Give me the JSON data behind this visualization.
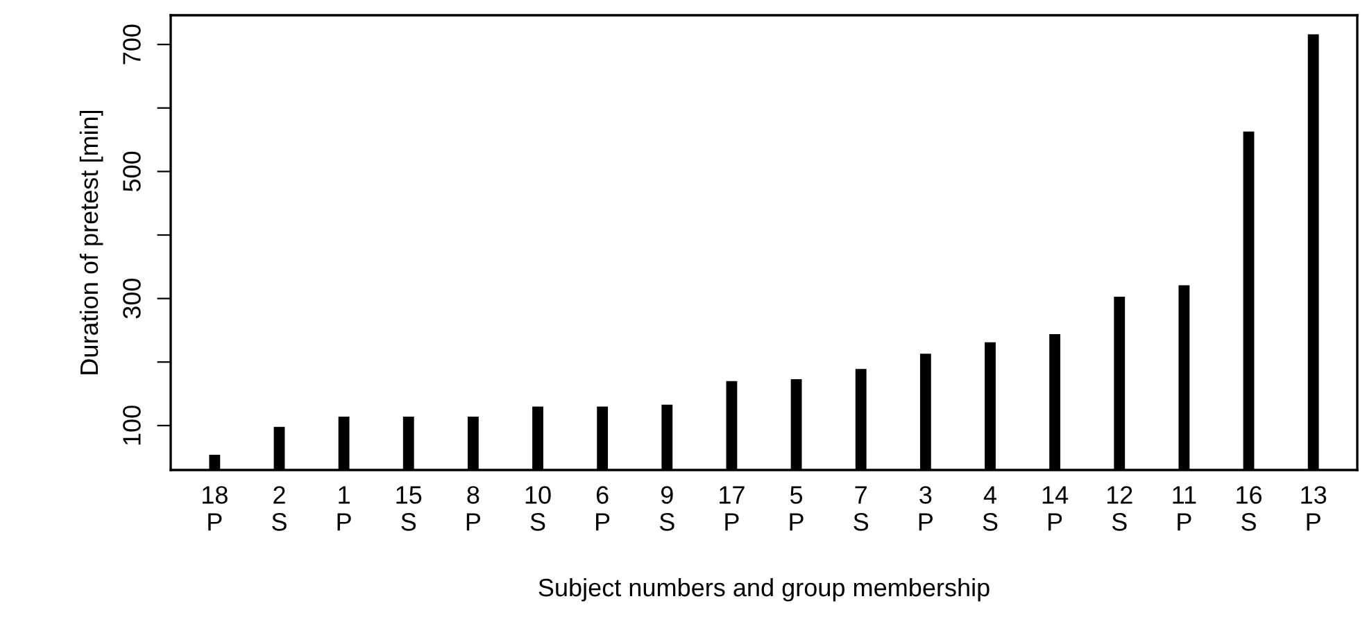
{
  "chart_data": {
    "type": "bar",
    "xlabel": "Subject numbers and group membership",
    "ylabel": "Duration of pretest [min]",
    "categories": [
      "18\nP",
      "2\nS",
      "1\nP",
      "15\nS",
      "8\nP",
      "10\nS",
      "6\nP",
      "9\nS",
      "17\nP",
      "5\nP",
      "7\nS",
      "3\nP",
      "4\nS",
      "14\nP",
      "12\nS",
      "11\nP",
      "16\nS",
      "13\nP"
    ],
    "values": [
      54,
      98,
      114,
      114,
      114,
      130,
      130,
      133,
      170,
      173,
      189,
      213,
      231,
      244,
      303,
      321,
      563,
      716
    ],
    "color": "#000000",
    "ylim": [
      30,
      746
    ],
    "yticks": [
      100,
      {
        "value": 200,
        "label": null
      },
      300,
      {
        "value": 400,
        "label": null
      },
      500,
      {
        "value": 600,
        "label": null
      },
      700
    ],
    "grid": false
  }
}
